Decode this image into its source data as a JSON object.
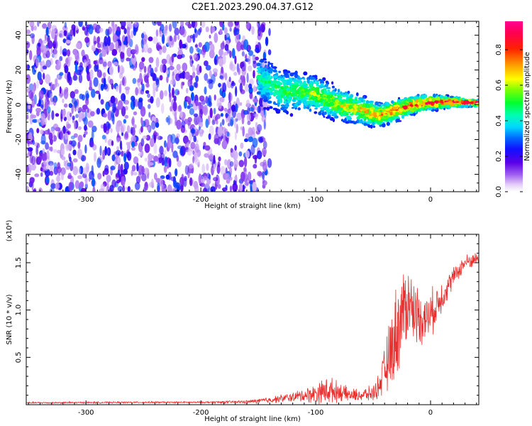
{
  "title": "C2E1.2023.290.04.37.G12",
  "colors": {
    "snr_line": "#e8312f",
    "axis": "#000000",
    "background": "#ffffff",
    "colormap": [
      "#ffffff",
      "#cfa8f0",
      "#7a1cf0",
      "#3b00e0",
      "#0040ff",
      "#00c8ff",
      "#00ff90",
      "#7dff00",
      "#ffff00",
      "#ff8000",
      "#ff0030",
      "#ff0080"
    ]
  },
  "chart_data": [
    {
      "type": "heatmap",
      "xlabel": "Height of straight line (km)",
      "ylabel": "Frequency (Hz)",
      "xlim": [
        -352,
        42
      ],
      "ylim": [
        -50,
        48
      ],
      "xticks": [
        -300,
        -200,
        -100,
        0
      ],
      "yticks": [
        -40,
        -20,
        0,
        20,
        40
      ],
      "colorbar": {
        "label": "Normalized spectral amplitude",
        "range": [
          0,
          0.96
        ],
        "ticks": [
          "0.0",
          "0.2",
          "0.4",
          "0.6",
          "0.8"
        ]
      },
      "regions": [
        {
          "description_key": "noise",
          "x": [
            -352,
            -150
          ],
          "y": [
            -50,
            48
          ],
          "amplitude": [
            0.05,
            0.3
          ]
        },
        {
          "description_key": "signal_track",
          "x": [
            -150,
            42
          ],
          "centerline": [
            [
              -150,
              15
            ],
            [
              -130,
              8
            ],
            [
              -100,
              6
            ],
            [
              -80,
              0
            ],
            [
              -60,
              -3
            ],
            [
              -45,
              -6
            ],
            [
              -30,
              -3
            ],
            [
              -15,
              0
            ],
            [
              0,
              1.5
            ],
            [
              20,
              1.5
            ],
            [
              42,
              1
            ]
          ],
          "amplitude": [
            0.2,
            0.95
          ]
        }
      ]
    },
    {
      "type": "line",
      "xlabel": "Height of straight line (km)",
      "ylabel": "SNR (10 * v/v)",
      "y_multiplier": "(x10⁴)",
      "xlim": [
        -352,
        42
      ],
      "ylim": [
        0,
        1.8
      ],
      "xticks": [
        -300,
        -200,
        -100,
        0
      ],
      "yticks": [
        0.5,
        1.0,
        1.5
      ],
      "ytick_labels": [
        "0.5",
        "1.0",
        "1.5"
      ],
      "envelope": {
        "x": [
          -352,
          -250,
          -200,
          -160,
          -140,
          -120,
          -100,
          -90,
          -80,
          -70,
          -60,
          -50,
          -45,
          -40,
          -35,
          -30,
          -25,
          -20,
          -15,
          -10,
          -5,
          0,
          10,
          20,
          30,
          42
        ],
        "mid": [
          0.02,
          0.025,
          0.025,
          0.03,
          0.05,
          0.08,
          0.12,
          0.15,
          0.14,
          0.1,
          0.1,
          0.12,
          0.2,
          0.35,
          0.55,
          0.75,
          0.95,
          1.1,
          1.0,
          0.95,
          0.9,
          0.95,
          1.15,
          1.35,
          1.5,
          1.55
        ],
        "amp": [
          0.01,
          0.01,
          0.01,
          0.02,
          0.04,
          0.06,
          0.12,
          0.18,
          0.12,
          0.08,
          0.08,
          0.1,
          0.15,
          0.3,
          0.45,
          0.6,
          0.55,
          0.5,
          0.4,
          0.35,
          0.3,
          0.3,
          0.2,
          0.12,
          0.1,
          0.08
        ]
      }
    }
  ]
}
